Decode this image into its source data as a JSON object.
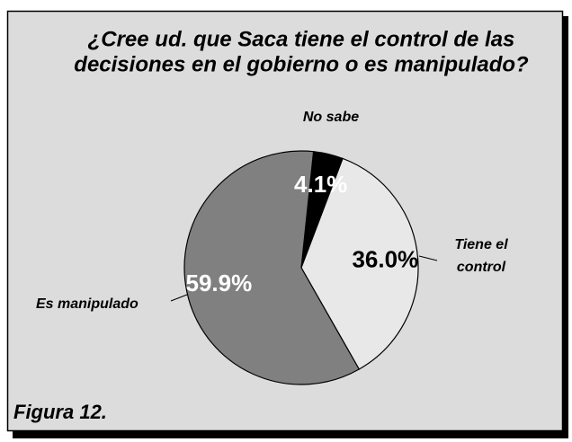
{
  "chart_data": {
    "type": "pie",
    "title": [
      "¿Cree ud. que Saca tiene el control de las",
      "decisiones en el gobierno o es manipulado?"
    ],
    "categories": [
      "No sabe",
      "Tiene el control",
      "Es manipulado"
    ],
    "values": [
      4.1,
      36.0,
      59.9
    ],
    "value_labels": [
      "4.1%",
      "36.0%",
      "59.9%"
    ],
    "colors": [
      "#000000",
      "#e8e8e8",
      "#808080"
    ],
    "label_colors": [
      "#ffffff",
      "#000000",
      "#ffffff"
    ],
    "caption": "Figura 12."
  }
}
